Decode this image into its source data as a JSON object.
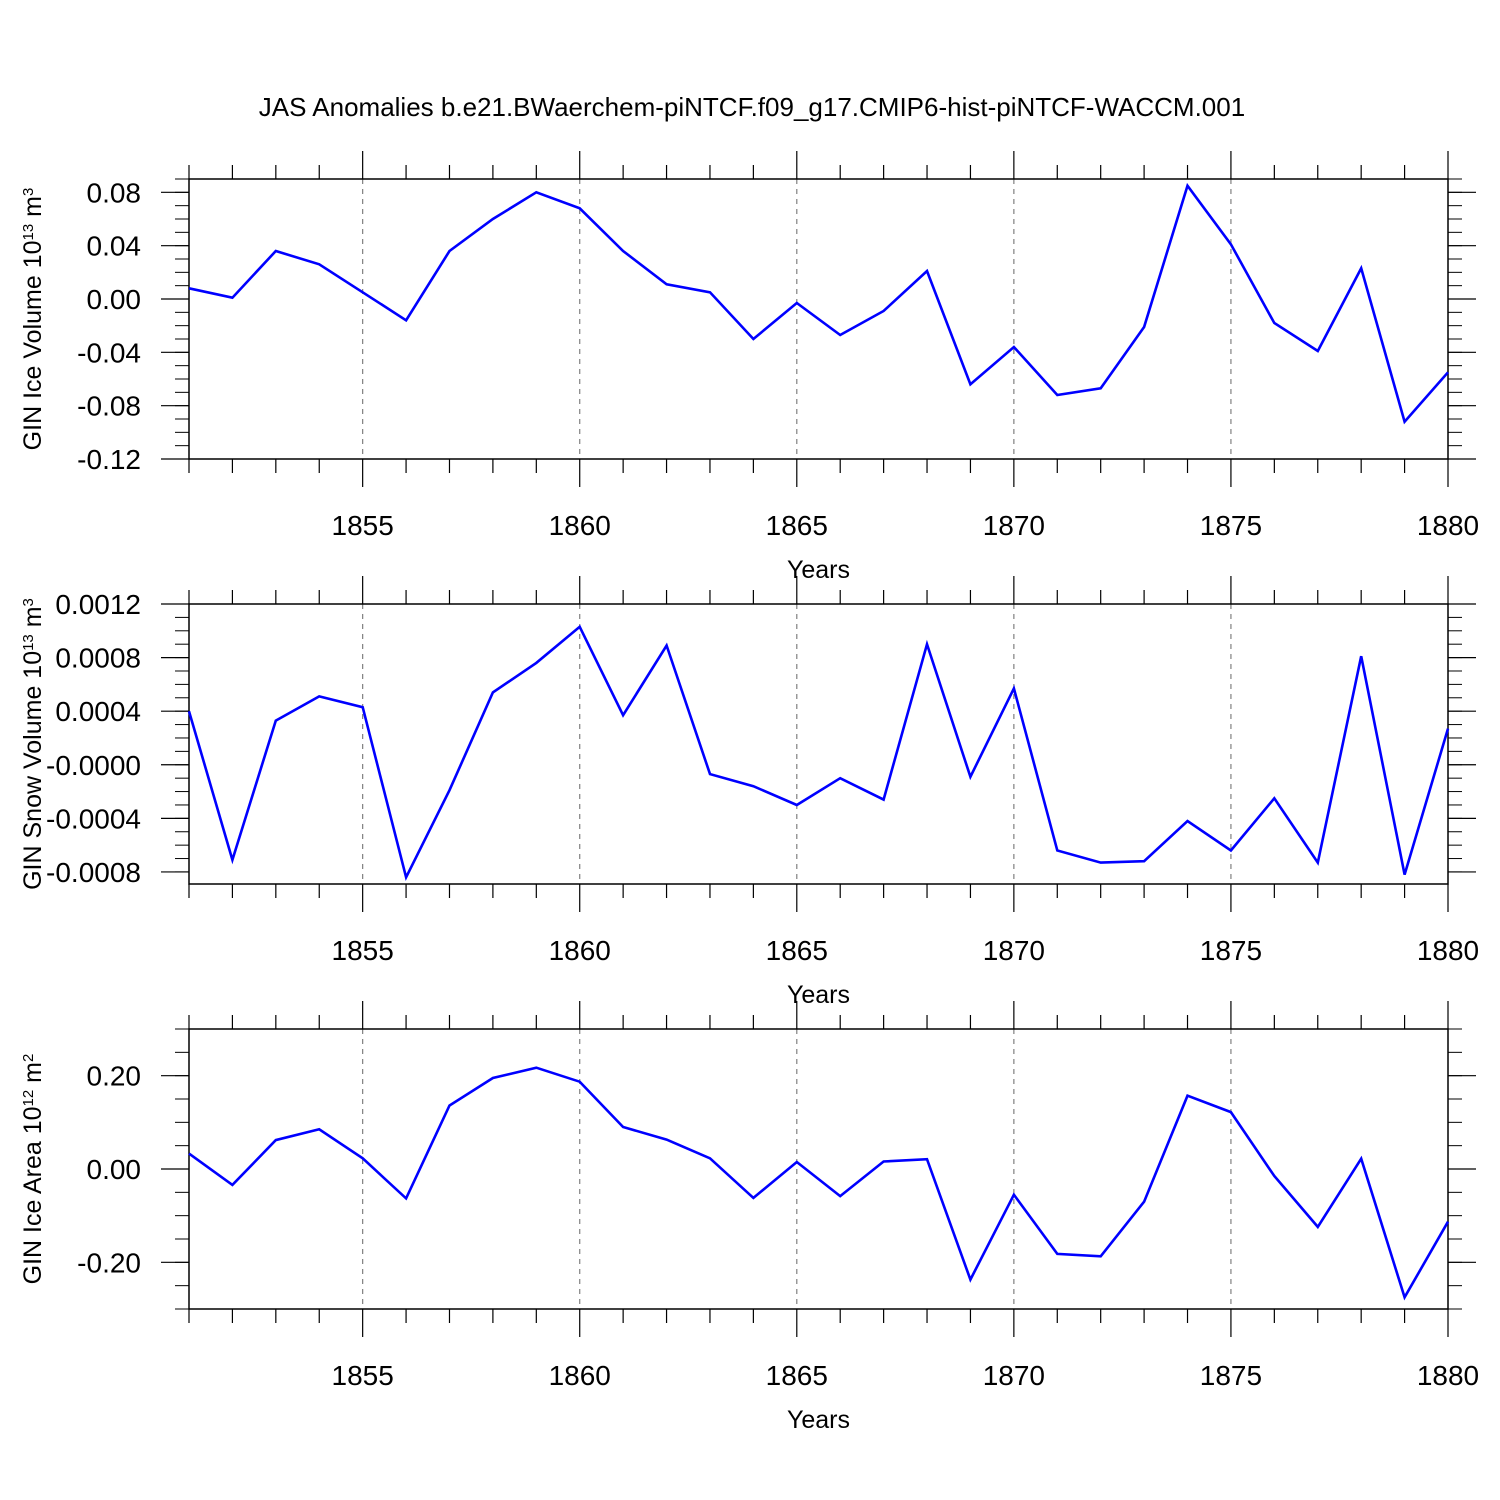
{
  "figure_title": "JAS Anomalies b.e21.BWaerchem-piNTCF.f09_g17.CMIP6-hist-piNTCF-WACCM.001",
  "colors": {
    "line": "#0000ff",
    "axis": "#000000",
    "gridline": "#808080"
  },
  "chart_data": [
    {
      "type": "line",
      "title": "JAS Anomalies b.e21.BWaerchem-piNTCF.f09_g17.CMIP6-hist-piNTCF-WACCM.001",
      "xlabel": "Years",
      "ylabel": {
        "text": "GIN Ice Volume 10",
        "exp": "13",
        "unit": " m",
        "unit_exp": "3"
      },
      "xlim": [
        1851,
        1880
      ],
      "ylim": [
        -0.12,
        0.09
      ],
      "xticks": [
        1855,
        1860,
        1865,
        1870,
        1875,
        1880
      ],
      "xtick_labels": [
        "1855",
        "1860",
        "1865",
        "1870",
        "1875",
        "1880"
      ],
      "yticks": [
        -0.12,
        -0.08,
        -0.04,
        0.0,
        0.04,
        0.08
      ],
      "ytick_labels": [
        "-0.12",
        "-0.08",
        "-0.04",
        "0.00",
        "0.04",
        "0.08"
      ],
      "y_minor_step": 0.01,
      "grid": "vertical dashed at major x ticks",
      "series": [
        {
          "name": "GIN Ice Volume",
          "x": [
            1851,
            1852,
            1853,
            1854,
            1855,
            1856,
            1857,
            1858,
            1859,
            1860,
            1861,
            1862,
            1863,
            1864,
            1865,
            1866,
            1867,
            1868,
            1869,
            1870,
            1871,
            1872,
            1873,
            1874,
            1875,
            1876,
            1877,
            1878,
            1879,
            1880
          ],
          "values": [
            0.008,
            0.001,
            0.036,
            0.026,
            0.005,
            -0.016,
            0.036,
            0.06,
            0.08,
            0.068,
            0.036,
            0.011,
            0.005,
            -0.03,
            -0.003,
            -0.027,
            -0.009,
            0.021,
            -0.064,
            -0.036,
            -0.072,
            -0.067,
            -0.021,
            0.085,
            0.041,
            -0.018,
            -0.039,
            0.023,
            -0.092,
            -0.055
          ]
        }
      ]
    },
    {
      "type": "line",
      "title": "",
      "xlabel": "Years",
      "ylabel": {
        "text": "GIN Snow Volume 10",
        "exp": "13",
        "unit": " m",
        "unit_exp": "3"
      },
      "xlim": [
        1851,
        1880
      ],
      "ylim": [
        -0.00089,
        0.0012
      ],
      "xticks": [
        1855,
        1860,
        1865,
        1870,
        1875,
        1880
      ],
      "xtick_labels": [
        "1855",
        "1860",
        "1865",
        "1870",
        "1875",
        "1880"
      ],
      "yticks": [
        -0.0008,
        -0.0004,
        0.0,
        0.0004,
        0.0008,
        0.0012
      ],
      "ytick_labels": [
        "-0.0008",
        "-0.0004",
        "-0.0000",
        "0.0004",
        "0.0008",
        "0.0012"
      ],
      "y_minor_step": 0.0001,
      "grid": "vertical dashed at major x ticks",
      "series": [
        {
          "name": "GIN Snow Volume",
          "x": [
            1851,
            1852,
            1853,
            1854,
            1855,
            1856,
            1857,
            1858,
            1859,
            1860,
            1861,
            1862,
            1863,
            1864,
            1865,
            1866,
            1867,
            1868,
            1869,
            1870,
            1871,
            1872,
            1873,
            1874,
            1875,
            1876,
            1877,
            1878,
            1879,
            1880
          ],
          "values": [
            0.0004,
            -0.00071,
            0.00033,
            0.00051,
            0.00043,
            -0.00084,
            -0.00019,
            0.00054,
            0.00076,
            0.00103,
            0.00037,
            0.00089,
            -7e-05,
            -0.00016,
            -0.0003,
            -0.0001,
            -0.00026,
            0.0009,
            -9e-05,
            0.00057,
            -0.00064,
            -0.00073,
            -0.00072,
            -0.00042,
            -0.00064,
            -0.00025,
            -0.00073,
            0.00081,
            -0.00082,
            0.00027
          ]
        }
      ]
    },
    {
      "type": "line",
      "title": "",
      "xlabel": "Years",
      "ylabel": {
        "text": "GIN Ice Area 10",
        "exp": "12",
        "unit": " m",
        "unit_exp": "2"
      },
      "xlim": [
        1851,
        1880
      ],
      "ylim": [
        -0.3,
        0.3
      ],
      "xticks": [
        1855,
        1860,
        1865,
        1870,
        1875,
        1880
      ],
      "xtick_labels": [
        "1855",
        "1860",
        "1865",
        "1870",
        "1875",
        "1880"
      ],
      "yticks": [
        -0.2,
        0.0,
        0.2
      ],
      "ytick_labels": [
        "-0.20",
        "0.00",
        "0.20"
      ],
      "y_minor_step": 0.05,
      "grid": "vertical dashed at major x ticks",
      "series": [
        {
          "name": "GIN Ice Area",
          "x": [
            1851,
            1852,
            1853,
            1854,
            1855,
            1856,
            1857,
            1858,
            1859,
            1860,
            1861,
            1862,
            1863,
            1864,
            1865,
            1866,
            1867,
            1868,
            1869,
            1870,
            1871,
            1872,
            1873,
            1874,
            1875,
            1876,
            1877,
            1878,
            1879,
            1880
          ],
          "values": [
            0.033,
            -0.034,
            0.062,
            0.085,
            0.023,
            -0.063,
            0.136,
            0.195,
            0.217,
            0.187,
            0.09,
            0.063,
            0.023,
            -0.062,
            0.015,
            -0.058,
            0.016,
            0.021,
            -0.237,
            -0.055,
            -0.182,
            -0.187,
            -0.07,
            0.157,
            0.122,
            -0.015,
            -0.124,
            0.022,
            -0.275,
            -0.113
          ]
        }
      ]
    }
  ]
}
